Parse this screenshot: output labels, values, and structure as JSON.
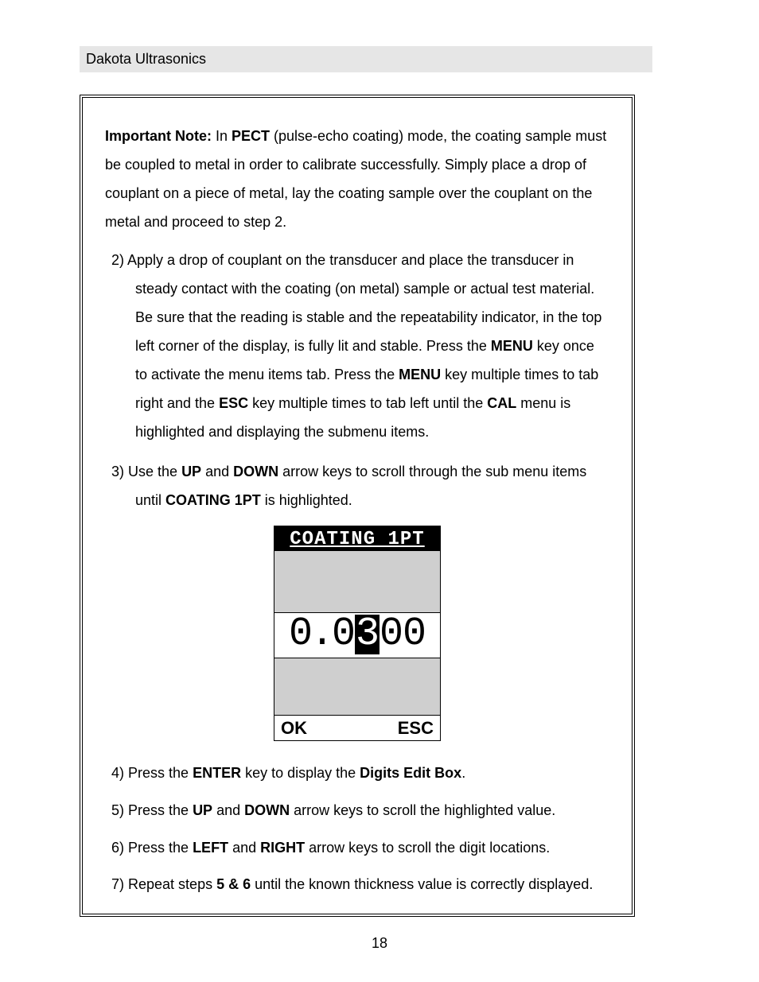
{
  "header": {
    "brand": "Dakota Ultrasonics"
  },
  "note": {
    "lead": "Important Note:",
    "t1": "  In ",
    "k1": "PECT",
    "t2": " (pulse-echo coating) mode, the coating sample must be coupled to metal in order to calibrate successfully.  Simply place a drop of couplant on a piece of metal, lay the coating sample over the couplant on the metal and proceed to step 2."
  },
  "step2": {
    "num": "2)  ",
    "a": "Apply a drop of couplant on the transducer and place the transducer in steady contact with the coating (on metal) sample or actual test material.  Be sure that the reading is stable and the repeatability indicator, in the top left corner of the display, is fully lit and stable. Press the ",
    "k1": "MENU",
    "b": " key once to activate the menu items tab.  Press the ",
    "k2": "MENU",
    "c": " key multiple times to tab right and the ",
    "k3": "ESC",
    "d": " key multiple times to tab left until the ",
    "k4": "CAL",
    "e": " menu is highlighted and displaying the submenu items."
  },
  "step3": {
    "num": "3)  ",
    "a": "Use the ",
    "k1": "UP",
    "b": " and ",
    "k2": "DOWN",
    "c": " arrow keys to scroll through the sub menu items until ",
    "k3": "COATING 1PT",
    "d": " is highlighted."
  },
  "lcd": {
    "title": "COATING 1PT",
    "d0": "0",
    "dot": ".",
    "d1": "0",
    "d2": "3",
    "d3": "0",
    "d4": "0",
    "ok": "OK",
    "esc": "ESC"
  },
  "step4": {
    "num": "4)  ",
    "a": "Press the ",
    "k1": "ENTER",
    "b": " key to display the ",
    "k2": "Digits Edit Box",
    "c": "."
  },
  "step5": {
    "num": "5)  ",
    "a": "Press the ",
    "k1": "UP",
    "b": " and ",
    "k2": "DOWN",
    "c": " arrow keys to scroll the highlighted value."
  },
  "step6": {
    "num": "6)  ",
    "a": "Press the ",
    "k1": "LEFT",
    "b": " and ",
    "k2": "RIGHT",
    "c": " arrow keys to scroll the digit locations."
  },
  "step7": {
    "num": "7)  ",
    "a": "Repeat steps ",
    "k1": "5 & 6",
    "b": " until the known thickness value is correctly displayed."
  },
  "pageNumber": "18"
}
